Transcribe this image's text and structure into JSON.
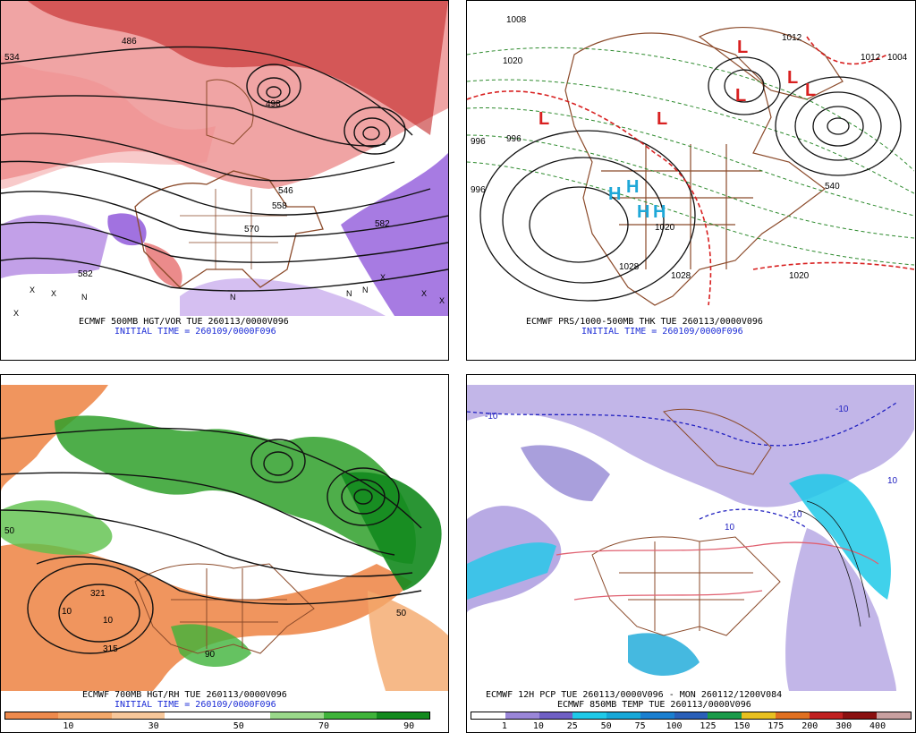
{
  "panels": {
    "top_left": {
      "caption": "ECMWF 500MB HGT/VOR TUE 260113/0000V096",
      "initial": "INITIAL TIME = 260109/0000F096",
      "contour_labels": [
        "534",
        "486",
        "498",
        "546",
        "558",
        "570",
        "582",
        "582"
      ],
      "markers": [
        "X",
        "X",
        "X",
        "X",
        "N",
        "N",
        "N",
        "N",
        "X",
        "X"
      ]
    },
    "top_right": {
      "caption": "ECMWF PRS/1000-500MB THK TUE 260113/0000V096",
      "initial": "INITIAL TIME = 260109/0000F096",
      "contour_labels": [
        "996",
        "996",
        "1020",
        "1008",
        "1012",
        "1012",
        "1004",
        "1020",
        "1020",
        "1028",
        "1028",
        "996",
        "540"
      ],
      "lows": [
        "L",
        "L",
        "L",
        "L",
        "L",
        "L"
      ],
      "highs": [
        "H",
        "H",
        "H",
        "H"
      ]
    },
    "bottom_left": {
      "caption": "ECMWF 700MB HGT/RH TUE 260113/0000V096",
      "initial": "INITIAL TIME = 260109/0000F096",
      "contour_labels": [
        "321",
        "315",
        "10",
        "10",
        "50",
        "50",
        "90"
      ],
      "colorbar_labels": [
        "10",
        "30",
        "50",
        "70",
        "90"
      ],
      "colorbar_colors": [
        "#ee8a4d",
        "#f4a86a",
        "#f7c79a",
        "#ffffff",
        "#ffffff",
        "#9ad98a",
        "#3fb33a",
        "#138a1e"
      ]
    },
    "bottom_right": {
      "caption": "ECMWF 12H PCP TUE 260113/0000V096 - MON 260112/1200V084",
      "caption2": "ECMWF 850MB TEMP TUE 260113/0000V096",
      "contour_labels": [
        "-10",
        "-10",
        "10",
        "-10",
        "10"
      ],
      "colorbar_labels": [
        "1",
        "10",
        "25",
        "50",
        "75",
        "100",
        "125",
        "150",
        "175",
        "200",
        "300",
        "400"
      ],
      "colorbar_colors": [
        "#ffffff",
        "#9a86d8",
        "#6f5fc4",
        "#1fc9e8",
        "#17a8d8",
        "#1a7fd0",
        "#2a5fb8",
        "#1a9a4a",
        "#e8c020",
        "#e07020",
        "#c02020",
        "#8a1010",
        "#c8a0a0"
      ]
    }
  }
}
